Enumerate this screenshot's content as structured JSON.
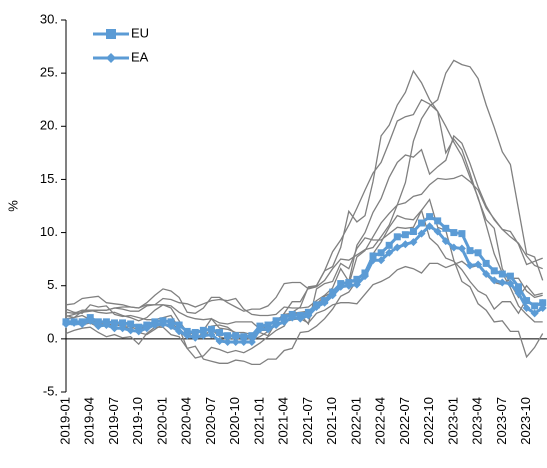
{
  "chart_data": {
    "type": "line",
    "y_label": "%",
    "ylim": [
      -5,
      30
    ],
    "yticks": [
      {
        "value": -5,
        "label": "-5."
      },
      {
        "value": 0,
        "label": "0."
      },
      {
        "value": 5,
        "label": "5."
      },
      {
        "value": 10,
        "label": "10."
      },
      {
        "value": 15,
        "label": "15."
      },
      {
        "value": 20,
        "label": "20."
      },
      {
        "value": 25,
        "label": "25."
      },
      {
        "value": 30,
        "label": "30."
      }
    ],
    "legend": "upper left",
    "categories": [
      "2019-01",
      null,
      null,
      "2019-04",
      null,
      null,
      "2019-07",
      null,
      null,
      "2019-10",
      null,
      null,
      "2020-01",
      null,
      null,
      "2020-04",
      null,
      null,
      "2020-07",
      null,
      null,
      "2020-10",
      null,
      null,
      "2021-01",
      null,
      null,
      "2021-04",
      null,
      null,
      "2021-07",
      null,
      null,
      "2021-10",
      null,
      null,
      "2022-01",
      null,
      null,
      "2022-04",
      null,
      null,
      "2022-07",
      null,
      null,
      "2022-10",
      null,
      null,
      "2023-01",
      null,
      null,
      "2023-04",
      null,
      null,
      "2023-07",
      null,
      null,
      "2023-10",
      null,
      null
    ],
    "series": [
      {
        "color": "#808080",
        "values": [
          2.8,
          2.5,
          2.4,
          3.2,
          3.0,
          3.1,
          2.3,
          2.1,
          2.2,
          2.0,
          1.8,
          1.8,
          2.0,
          2.2,
          1.0,
          -0.9,
          -1.8,
          -1.6,
          -0.8,
          -1.0,
          -1.3,
          -1.1,
          -1.3,
          -0.9,
          -0.4,
          0.2,
          0.8,
          1.2,
          2.5,
          3.0,
          4.9,
          5.0,
          6.4,
          6.8,
          8.6,
          12.0,
          11.0,
          11.6,
          14.8,
          19.1,
          20.1,
          22.0,
          23.2,
          25.2,
          24.1,
          22.5,
          21.4,
          17.5,
          18.8,
          17.8,
          15.6,
          13.2,
          11.2,
          10.4,
          6.6,
          5.2,
          3.9,
          5.0,
          4.1,
          4.3
        ]
      },
      {
        "color": "#808080",
        "values": [
          3.2,
          3.3,
          3.8,
          3.9,
          4.0,
          3.4,
          3.3,
          3.2,
          3.0,
          2.9,
          3.4,
          4.1,
          4.7,
          4.5,
          3.9,
          2.5,
          2.4,
          2.9,
          3.9,
          3.9,
          3.4,
          3.0,
          2.6,
          2.8,
          2.8,
          3.1,
          3.9,
          5.2,
          5.3,
          5.3,
          4.7,
          4.9,
          5.5,
          6.6,
          7.5,
          7.4,
          7.9,
          8.4,
          8.6,
          9.6,
          10.7,
          12.6,
          14.7,
          18.6,
          20.7,
          21.9,
          22.5,
          25.0,
          26.2,
          25.8,
          25.6,
          24.5,
          22.0,
          19.9,
          17.6,
          16.4,
          12.2,
          8.0,
          7.7,
          5.5
        ]
      },
      {
        "color": "#808080",
        "values": [
          1.9,
          2.0,
          2.6,
          2.7,
          2.5,
          2.4,
          2.5,
          2.2,
          2.0,
          1.7,
          2.0,
          2.7,
          3.2,
          2.9,
          1.7,
          0.6,
          0.0,
          0.6,
          1.2,
          1.3,
          1.1,
          0.5,
          0.2,
          -0.1,
          0.2,
          0.7,
          1.6,
          2.4,
          3.5,
          3.5,
          4.8,
          5.0,
          6.4,
          8.2,
          9.3,
          10.7,
          12.3,
          14.0,
          15.6,
          16.6,
          18.5,
          20.5,
          20.9,
          21.1,
          22.5,
          22.1,
          21.4,
          20.0,
          18.5,
          17.2,
          15.2,
          13.3,
          10.7,
          8.0,
          6.2,
          4.8,
          3.1,
          2.3,
          1.6,
          1.6
        ]
      },
      {
        "color": "#808080",
        "values": [
          2.2,
          2.0,
          2.2,
          1.8,
          1.5,
          1.3,
          1.3,
          1.2,
          0.9,
          0.6,
          0.4,
          0.9,
          1.4,
          1.0,
          0.8,
          0.4,
          0.6,
          0.8,
          1.9,
          1.0,
          0.9,
          0.6,
          0.6,
          0.4,
          0.6,
          0.3,
          1.6,
          2.1,
          2.2,
          2.3,
          1.4,
          4.7,
          5.2,
          5.4,
          7.1,
          6.6,
          8.5,
          9.5,
          9.3,
          9.3,
          9.9,
          10.5,
          10.4,
          10.5,
          12.1,
          13.1,
          10.5,
          10.2,
          7.4,
          5.4,
          4.9,
          3.3,
          2.7,
          1.6,
          1.7,
          0.7,
          0.7,
          -1.7,
          -0.8,
          0.5
        ]
      },
      {
        "color": "#808080",
        "values": [
          1.4,
          1.6,
          1.3,
          1.5,
          1.1,
          1.4,
          1.3,
          1.3,
          1.1,
          0.9,
          1.2,
          1.6,
          1.7,
          1.6,
          0.8,
          0.4,
          0.2,
          0.2,
          0.9,
          0.2,
          0.0,
          0.1,
          0.2,
          0.0,
          0.8,
          0.8,
          1.4,
          1.6,
          1.8,
          1.9,
          1.5,
          2.4,
          2.7,
          3.2,
          3.4,
          3.4,
          3.3,
          4.2,
          5.1,
          5.4,
          5.8,
          6.5,
          6.8,
          6.6,
          6.2,
          7.1,
          7.1,
          6.7,
          7.0,
          7.3,
          6.7,
          6.9,
          6.0,
          5.3,
          5.1,
          5.7,
          5.7,
          4.5,
          3.9,
          4.1
        ]
      },
      {
        "color": "#808080",
        "values": [
          2.1,
          2.3,
          2.5,
          2.6,
          2.7,
          2.7,
          2.9,
          2.8,
          2.6,
          2.6,
          3.1,
          3.2,
          3.8,
          3.7,
          3.4,
          3.3,
          3.0,
          3.3,
          3.6,
          3.7,
          3.6,
          3.8,
          2.8,
          2.3,
          2.2,
          2.2,
          2.3,
          3.0,
          2.9,
          2.9,
          3.0,
          3.6,
          4.1,
          4.8,
          6.6,
          5.4,
          8.8,
          10.0,
          11.9,
          13.2,
          15.2,
          16.6,
          17.3,
          17.1,
          17.8,
          15.5,
          16.2,
          16.8,
          19.1,
          18.4,
          16.5,
          14.3,
          12.5,
          11.2,
          10.3,
          10.1,
          8.9,
          7.0,
          7.3,
          7.6
        ]
      },
      {
        "color": "#808080",
        "values": [
          0.5,
          0.8,
          1.0,
          1.1,
          0.6,
          0.2,
          0.4,
          0.1,
          0.2,
          -0.5,
          0.5,
          1.1,
          1.1,
          0.4,
          0.2,
          -0.9,
          -0.7,
          -1.9,
          -2.1,
          -2.3,
          -2.3,
          -2.0,
          -2.1,
          -2.4,
          -2.4,
          -1.9,
          -1.9,
          -1.1,
          -0.9,
          0.6,
          0.7,
          1.2,
          1.9,
          2.8,
          4.0,
          4.4,
          5.5,
          6.3,
          8.0,
          9.1,
          10.5,
          11.6,
          11.3,
          11.2,
          12.1,
          9.5,
          8.8,
          7.6,
          7.3,
          6.5,
          5.4,
          4.5,
          4.1,
          2.8,
          3.5,
          3.5,
          2.4,
          3.8,
          2.9,
          3.7
        ]
      },
      {
        "color": "#808080",
        "values": [
          2.5,
          2.4,
          2.7,
          2.7,
          2.7,
          2.7,
          2.9,
          3.0,
          3.0,
          2.9,
          3.2,
          3.2,
          3.2,
          3.1,
          2.5,
          2.1,
          1.9,
          1.8,
          1.9,
          1.5,
          1.4,
          1.6,
          1.6,
          1.6,
          0.9,
          1.2,
          1.7,
          2.3,
          2.4,
          2.5,
          2.6,
          3.3,
          4.0,
          4.4,
          4.8,
          5.1,
          7.7,
          8.3,
          9.6,
          10.9,
          11.8,
          12.6,
          12.8,
          13.4,
          13.6,
          14.5,
          15.1,
          15.0,
          15.1,
          15.4,
          14.8,
          14.0,
          12.3,
          11.3,
          10.3,
          9.6,
          9.0,
          7.8,
          6.9,
          6.6
        ]
      },
      {
        "name": "EU",
        "color": "#5b9bd5",
        "marker": "square",
        "values": [
          1.6,
          1.6,
          1.6,
          2.0,
          1.6,
          1.6,
          1.5,
          1.5,
          1.4,
          1.1,
          1.3,
          1.6,
          1.7,
          1.6,
          1.3,
          0.7,
          0.6,
          0.8,
          0.9,
          0.6,
          0.3,
          0.3,
          0.2,
          0.3,
          1.2,
          1.3,
          1.7,
          2.0,
          2.3,
          2.2,
          2.5,
          3.2,
          3.6,
          4.4,
          5.2,
          5.3,
          5.6,
          6.2,
          7.8,
          8.1,
          8.8,
          9.6,
          9.8,
          10.1,
          10.9,
          11.5,
          11.1,
          10.4,
          10.0,
          9.9,
          8.3,
          8.1,
          7.1,
          6.4,
          6.1,
          5.9,
          4.9,
          3.6,
          3.1,
          3.4
        ]
      },
      {
        "name": "EA",
        "color": "#5b9bd5",
        "marker": "diamond",
        "values": [
          1.4,
          1.5,
          1.4,
          1.7,
          1.2,
          1.3,
          1.0,
          1.0,
          0.8,
          0.7,
          1.0,
          1.3,
          1.4,
          1.2,
          0.7,
          0.3,
          0.1,
          0.3,
          0.4,
          -0.2,
          -0.3,
          -0.3,
          -0.3,
          -0.3,
          0.9,
          0.9,
          1.3,
          1.6,
          2.0,
          1.9,
          2.2,
          3.0,
          3.4,
          4.1,
          4.9,
          5.0,
          5.1,
          5.9,
          7.4,
          7.4,
          8.1,
          8.6,
          8.9,
          9.1,
          9.9,
          10.6,
          10.1,
          9.2,
          8.6,
          8.5,
          6.9,
          7.0,
          6.1,
          5.5,
          5.3,
          5.2,
          4.3,
          2.9,
          2.4,
          2.9
        ]
      }
    ]
  }
}
